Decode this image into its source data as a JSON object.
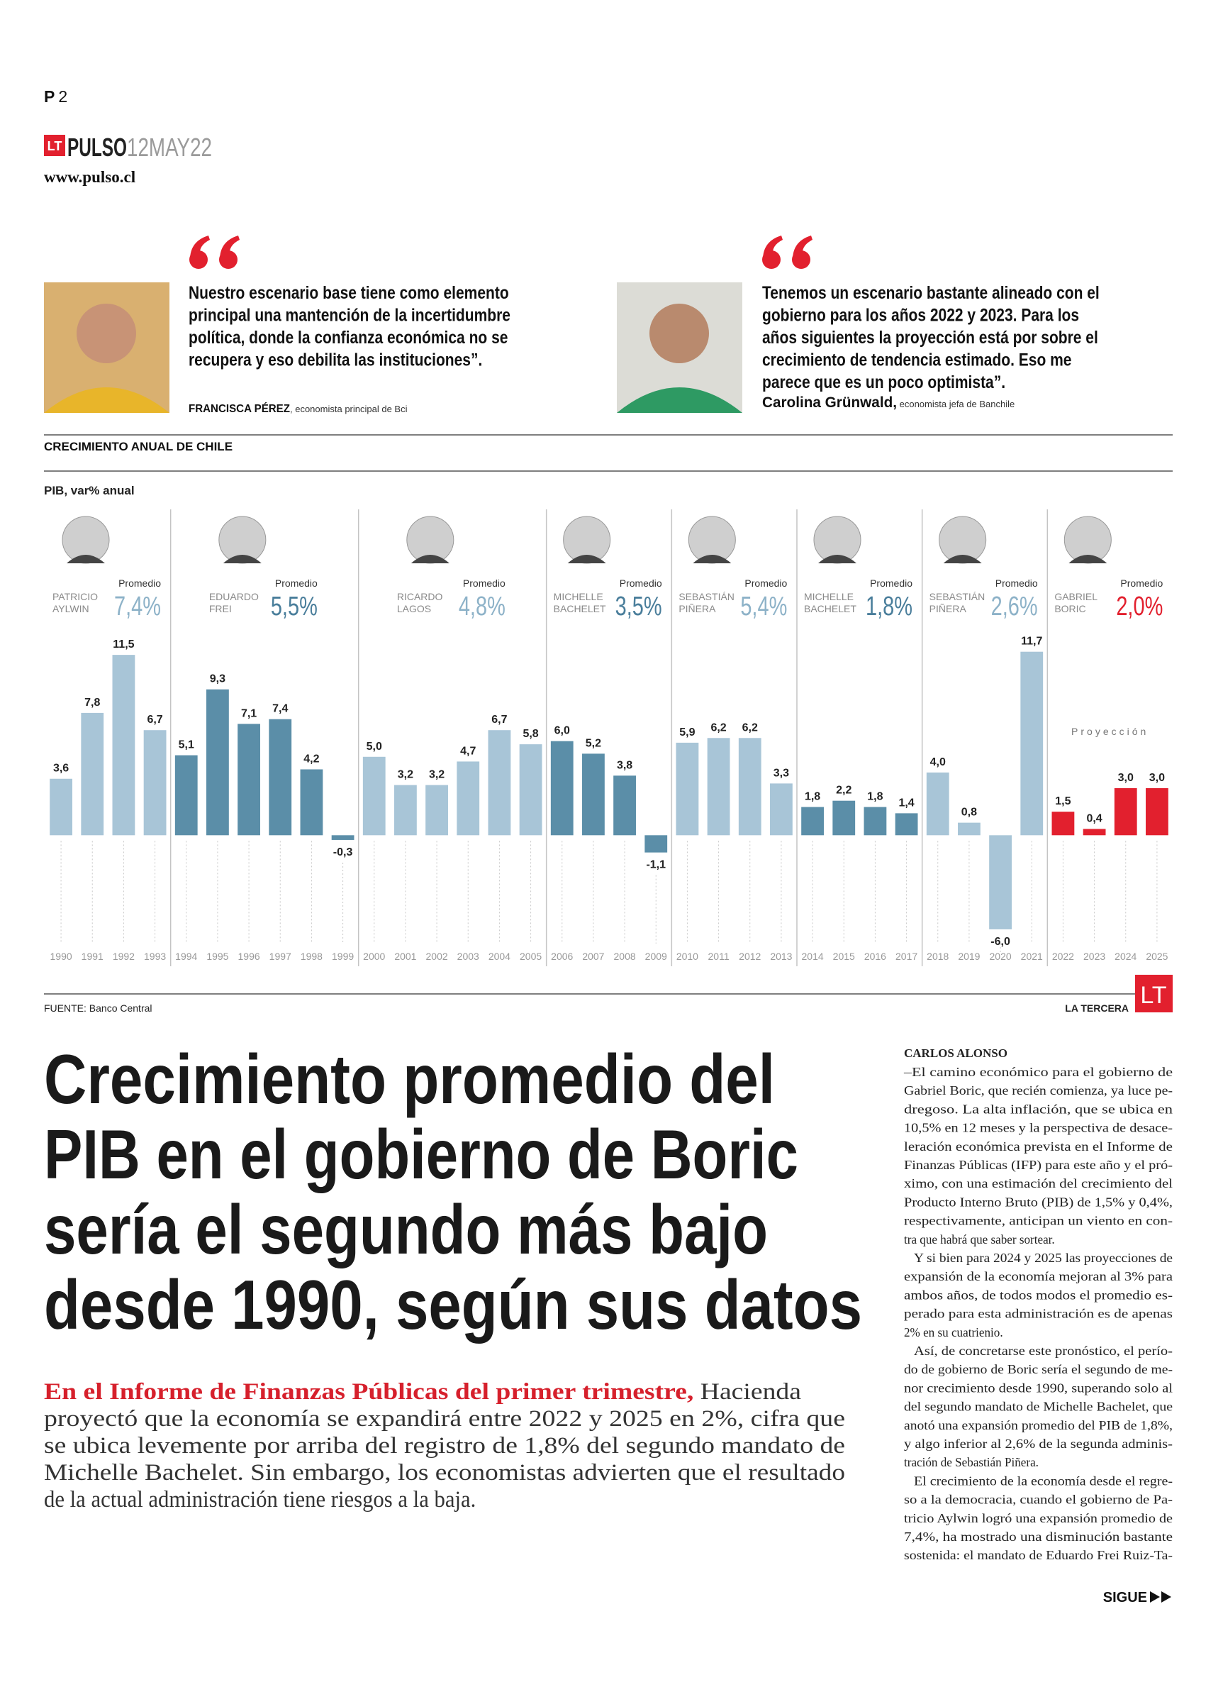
{
  "header": {
    "page": "P",
    "page_number": "2",
    "logo": "LT",
    "section": "PULSO",
    "date": "12MAY22",
    "url": "www.pulso.cl"
  },
  "quotes": [
    {
      "lines": [
        "Nuestro escenario base tiene como elemento",
        "principal una mantención de la incertidumbre",
        "política, donde la confianza económica no se",
        "recupera y eso debilita las instituciones”."
      ],
      "author": "FRANCISCA PÉREZ",
      "role": ", economista principal de Bci"
    },
    {
      "lines": [
        "Tenemos un escenario bastante alineado con el",
        "gobierno para los años 2022 y 2023. Para los",
        "años siguientes la proyección está por sobre el",
        "crecimiento de tendencia estimado. Eso me",
        "parece que es un poco optimista”."
      ],
      "author": "Carolina Grünwald,",
      "role": " economista jefa de Banchile"
    }
  ],
  "chart_data": {
    "type": "bar",
    "title": "CRECIMIENTO ANUAL DE CHILE",
    "subtitle": "PIB, var% anual",
    "categories": [
      "1990",
      "1991",
      "1992",
      "1993",
      "1994",
      "1995",
      "1996",
      "1997",
      "1998",
      "1999",
      "2000",
      "2001",
      "2002",
      "2003",
      "2004",
      "2005",
      "2006",
      "2007",
      "2008",
      "2009",
      "2010",
      "2011",
      "2012",
      "2013",
      "2014",
      "2015",
      "2016",
      "2017",
      "2018",
      "2019",
      "2020",
      "2021",
      "2022",
      "2023",
      "2024",
      "2025"
    ],
    "values": [
      3.6,
      7.8,
      11.5,
      6.7,
      5.1,
      9.3,
      7.1,
      7.4,
      4.2,
      -0.3,
      5.0,
      3.2,
      3.2,
      4.7,
      6.7,
      5.8,
      6.0,
      5.2,
      3.8,
      -1.1,
      5.9,
      6.2,
      6.2,
      3.3,
      1.8,
      2.2,
      1.8,
      1.4,
      4.0,
      0.8,
      -6.0,
      11.7,
      1.5,
      0.4,
      3.0,
      3.0
    ],
    "value_labels": [
      "3,6",
      "7,8",
      "11,5",
      "6,7",
      "5,1",
      "9,3",
      "7,1",
      "7,4",
      "4,2",
      "-0,3",
      "5,0",
      "3,2",
      "3,2",
      "4,7",
      "6,7",
      "5,8",
      "6,0",
      "5,2",
      "3,8",
      "-1,1",
      "5,9",
      "6,2",
      "6,2",
      "3,3",
      "1,8",
      "2,2",
      "1,8",
      "1,4",
      "4,0",
      "0,8",
      "-6,0",
      "11,7",
      "1,5",
      "0,4",
      "3,0",
      "3,0"
    ],
    "ylim": [
      -6.5,
      12.5
    ],
    "average_caption": "Promedio",
    "annotation": "Proyección",
    "governments": [
      {
        "name": [
          "PATRICIO",
          "AYLWIN"
        ],
        "start": "1990",
        "average": 7.4,
        "average_label": "7,4%",
        "color": "#a8c5d7",
        "label_color": "#8db2c8"
      },
      {
        "name": [
          "EDUARDO",
          "FREI"
        ],
        "start": "1994",
        "average": 5.5,
        "average_label": "5,5%",
        "color": "#5b8ea8",
        "label_color": "#4a7e9b"
      },
      {
        "name": [
          "RICARDO",
          "LAGOS"
        ],
        "start": "2000",
        "average": 4.8,
        "average_label": "4,8%",
        "color": "#a8c5d7",
        "label_color": "#8db2c8"
      },
      {
        "name": [
          "MICHELLE",
          "BACHELET"
        ],
        "start": "2006",
        "average": 3.5,
        "average_label": "3,5%",
        "color": "#5b8ea8",
        "label_color": "#4a7e9b"
      },
      {
        "name": [
          "SEBASTIÁN",
          "PIÑERA"
        ],
        "start": "2010",
        "average": 5.4,
        "average_label": "5,4%",
        "color": "#a8c5d7",
        "label_color": "#8db2c8"
      },
      {
        "name": [
          "MICHELLE",
          "BACHELET"
        ],
        "start": "2014",
        "average": 1.8,
        "average_label": "1,8%",
        "color": "#5b8ea8",
        "label_color": "#4a7e9b"
      },
      {
        "name": [
          "SEBASTIÁN",
          "PIÑERA"
        ],
        "start": "2018",
        "average": 2.6,
        "average_label": "2,6%",
        "color": "#a8c5d7",
        "label_color": "#8db2c8"
      },
      {
        "name": [
          "GABRIEL",
          "BORIC"
        ],
        "start": "2022",
        "average": 2.0,
        "average_label": "2,0%",
        "color": "#e2202e",
        "label_color": "#e2202e"
      }
    ]
  },
  "source": "FUENTE: Banco Central",
  "brand": "LA TERCERA",
  "brand_logo": "LT",
  "headline": {
    "lines": [
      "Crecimiento promedio del",
      "PIB en el gobierno de Boric",
      "sería el segundo más bajo",
      "desde 1990, según sus datos"
    ]
  },
  "lead": {
    "highlight": "En el Informe de Finanzas Públicas del primer trimestre,",
    "lines": [
      " Hacienda",
      "proyectó que la economía se expandirá entre 2022 y 2025 en 2%, cifra que",
      "se ubica levemente por arriba del registro de 1,8% del segundo mandato de",
      "Michelle Bachelet. Sin embargo, los economistas advierten que el resultado",
      "de la actual administración tiene riesgos a la baja."
    ]
  },
  "article": {
    "author": "CARLOS ALONSO",
    "paragraphs": [
      [
        "–El camino económico para el gobierno de",
        "Gabriel Boric, que recién comienza, ya luce pe-",
        "dregoso. La alta inflación, que se ubica en",
        "10,5% en 12 meses y la perspectiva de desace-",
        "leración económica prevista en el Informe de",
        "Finanzas Públicas (IFP) para este año y el pró-",
        "ximo, con una estimación del crecimiento del",
        "Producto Interno Bruto (PIB) de 1,5% y 0,4%,",
        "respectivamente, anticipan un viento en con-",
        "tra que habrá que saber sortear."
      ],
      [
        "Y si bien para 2024 y 2025 las proyecciones de",
        "expansión de la economía mejoran al 3% para",
        "ambos años, de todos modos el promedio es-",
        "perado para esta administración es de apenas",
        "2% en su cuatrienio."
      ],
      [
        "Así, de concretarse este pronóstico, el perío-",
        "do de gobierno de Boric sería el segundo de me-",
        "nor crecimiento desde 1990, superando solo al",
        "del segundo mandato de Michelle Bachelet, que",
        "anotó una expansión promedio del PIB de 1,8%,",
        "y algo inferior al 2,6% de la segunda adminis-",
        "tración de Sebastián Piñera."
      ],
      [
        "El crecimiento de la economía desde el regre-",
        "so a la democracia, cuando el gobierno de Pa-",
        "tricio Aylwin logró una expansión promedio de",
        "7,4%, ha mostrado una disminución bastante",
        "sostenida: el mandato de Eduardo Frei Ruiz-Ta-"
      ]
    ]
  },
  "continue": "SIGUE"
}
